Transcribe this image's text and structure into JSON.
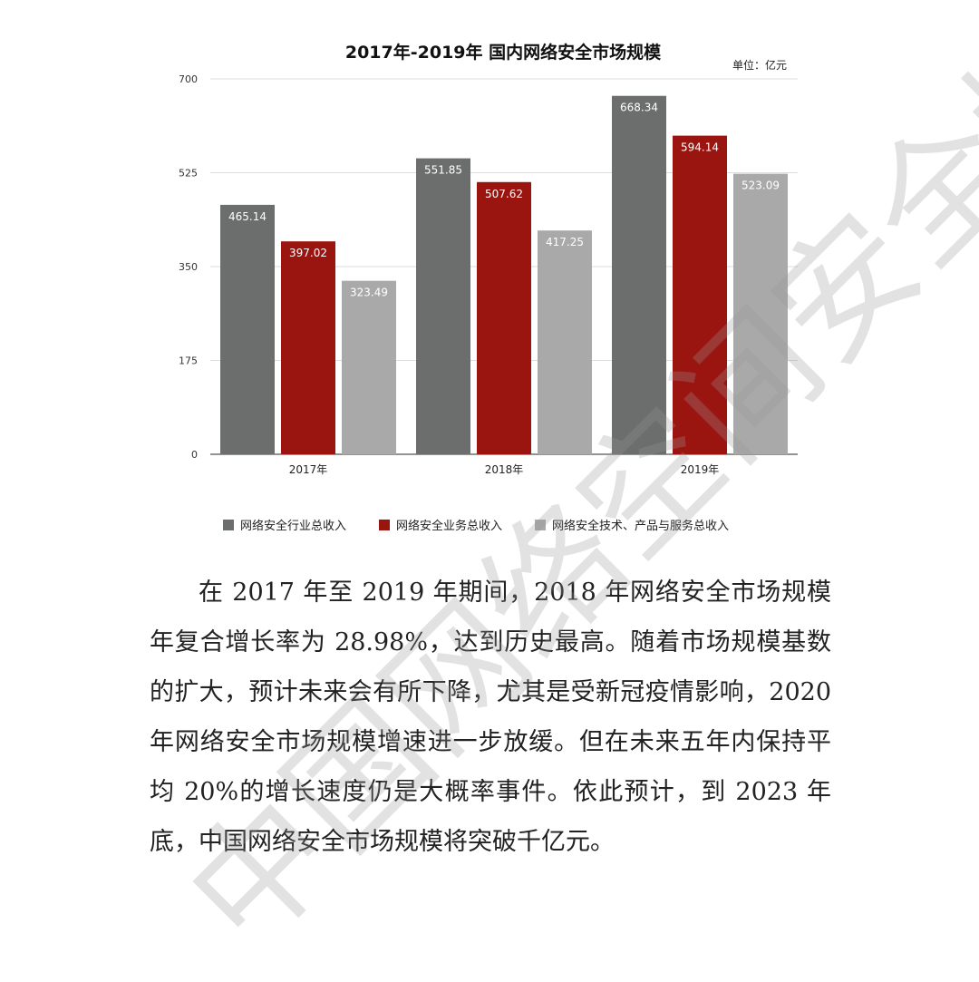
{
  "chart_data": {
    "type": "bar",
    "title": "2017年-2019年 国内网络安全市场规模",
    "unit": "单位：亿元",
    "categories": [
      "2017年",
      "2018年",
      "2019年"
    ],
    "ylim": [
      0,
      700
    ],
    "yticks": [
      "0",
      "175",
      "350",
      "525",
      "700"
    ],
    "legend_position": "bottom",
    "grid": true,
    "series": [
      {
        "name": "网络安全行业总收入",
        "color": "#6b6e6c",
        "values": [
          465.14,
          551.85,
          668.34
        ]
      },
      {
        "name": "网络安全业务总收入",
        "color": "#9b1510",
        "values": [
          397.02,
          507.62,
          594.14
        ]
      },
      {
        "name": "网络安全技术、产品与服务总收入",
        "color": "#a9a9a9",
        "values": [
          323.49,
          417.25,
          523.09
        ]
      }
    ]
  },
  "paragraph": "在 2017 年至 2019 年期间，2018 年网络安全市场规模年复合增长率为 28.98%，达到历史最高。随着市场规模基数的扩大，预计未来会有所下降，尤其是受新冠疫情影响，2020 年网络安全市场规模增速进一步放缓。但在未来五年内保持平均 20%的增长速度仍是大概率事件。依此预计，到 2023 年底，中国网络安全市场规模将突破千亿元。",
  "watermark": "中国网络空间安全协会"
}
